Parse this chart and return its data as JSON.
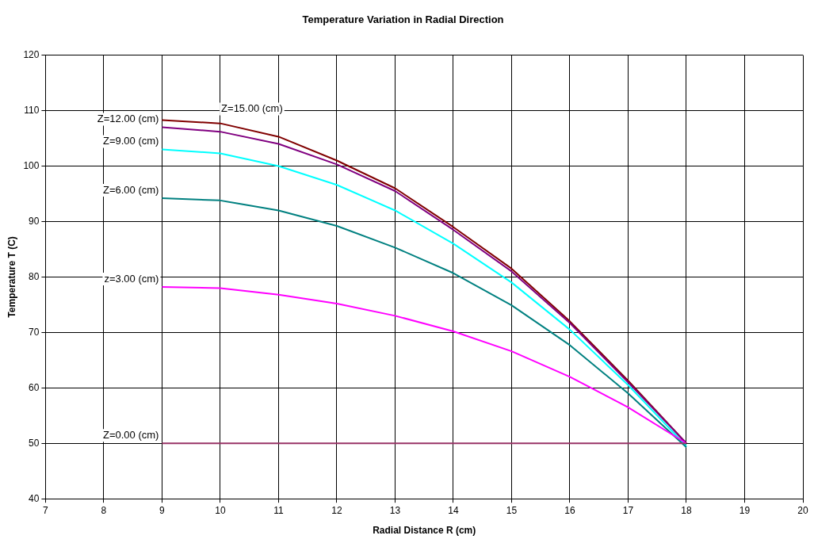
{
  "chart_data": {
    "type": "line",
    "title": "Temperature Variation in Radial Direction",
    "xlabel": "Radial Distance R (cm)",
    "ylabel": "Temperature T (C)",
    "x": [
      9,
      10,
      11,
      12,
      13,
      14,
      15,
      16,
      17,
      18
    ],
    "series": [
      {
        "name": "Z=0.00 (cm)",
        "color": "#993366",
        "values": [
          50,
          50,
          50,
          50,
          50,
          50,
          50,
          50,
          50,
          50
        ]
      },
      {
        "name": "z=3.00 (cm)",
        "color": "#ff00ff",
        "values": [
          78.2,
          78,
          76.8,
          75.2,
          73,
          70.2,
          66.6,
          62,
          56.5,
          50
        ]
      },
      {
        "name": "Z=6.00 (cm)",
        "color": "#008080",
        "values": [
          94.2,
          93.8,
          92,
          89.2,
          85.3,
          80.7,
          74.9,
          67.7,
          59,
          49.3
        ]
      },
      {
        "name": "Z=9.00 (cm)",
        "color": "#00ffff",
        "values": [
          103,
          102.3,
          100,
          96.6,
          92,
          86,
          79,
          70.5,
          60.5,
          49.5
        ]
      },
      {
        "name": "Z=12.00 (cm)",
        "color": "#800080",
        "values": [
          107,
          106.2,
          104,
          100.3,
          95.5,
          88.5,
          81,
          71.7,
          61,
          50
        ]
      },
      {
        "name": "Z=15.00 (cm)",
        "color": "#800000",
        "values": [
          108.3,
          107.7,
          105.3,
          101,
          96,
          89,
          81.5,
          72,
          61.3,
          50
        ]
      }
    ],
    "xlim": [
      7,
      20
    ],
    "xticks": [
      7,
      8,
      9,
      10,
      11,
      12,
      13,
      14,
      15,
      16,
      17,
      18,
      19,
      20
    ],
    "ylim": [
      40,
      120
    ],
    "yticks": [
      40,
      50,
      60,
      70,
      80,
      90,
      100,
      110,
      120
    ],
    "grid": true,
    "legend": false,
    "marker": "none",
    "line_style": "solid"
  }
}
